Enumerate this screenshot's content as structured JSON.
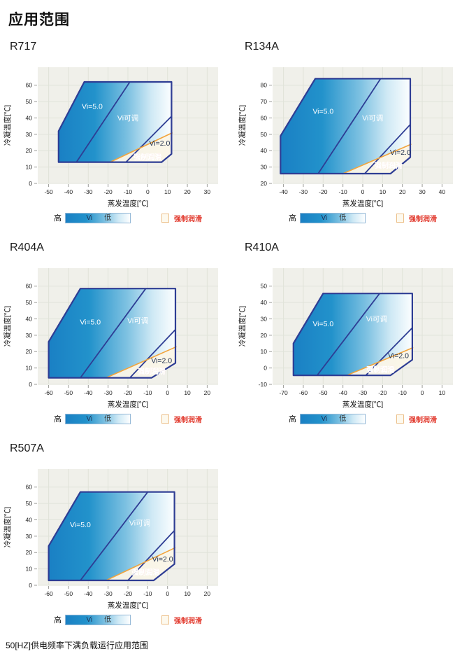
{
  "page": {
    "title": "应用范围",
    "footnote": "50[HZ]供电频率下满负载运行应用范围"
  },
  "legend": {
    "high": "高",
    "vi": "Vi",
    "low": "低",
    "forced": "强制润滑"
  },
  "colors": {
    "envelope_border": "#2e3d94",
    "gradient_stops": [
      "#1a80c4",
      "#2292cb",
      "#7fc2e2",
      "#cfe9f5",
      "#fcfeff"
    ],
    "gradient_offsets": [
      0,
      0.32,
      0.62,
      0.82,
      1
    ],
    "orange": "#f2a43c",
    "red": "#e23b2f",
    "plot_bg": "#f0f0ea",
    "grid_line": "#e0e3d9",
    "forced_fill": "#fbf5e7",
    "label_white": "#ffffff",
    "label_dark": "#1b2b4a",
    "tick_text": "#222222",
    "tick_mark": "#9a9a96",
    "axis_title": "#111111"
  },
  "chart_data": [
    {
      "id": "R717",
      "title": "R717",
      "type": "area",
      "xlabel": "蒸发温度[℃]",
      "ylabel": "冷凝温度[℃]",
      "xlim": [
        -55.5,
        35.5
      ],
      "ylim": [
        0,
        71
      ],
      "xticks": [
        -50,
        -40,
        -30,
        -20,
        -10,
        0,
        10,
        20,
        30
      ],
      "yticks": [
        0,
        10,
        20,
        30,
        40,
        50,
        60
      ],
      "envelope": [
        [
          -45,
          13
        ],
        [
          -45,
          32
        ],
        [
          -32,
          62
        ],
        [
          12,
          62
        ],
        [
          12,
          18
        ],
        [
          7,
          13
        ]
      ],
      "vi_max_line": [
        [
          -36,
          13
        ],
        [
          -9,
          62
        ]
      ],
      "vi_min_line": [
        [
          -11,
          13
        ],
        [
          12,
          41
        ]
      ],
      "forced_line": [
        [
          -19,
          13
        ],
        [
          12.5,
          31
        ]
      ],
      "forced_region": [
        [
          -19,
          13
        ],
        [
          7,
          13
        ],
        [
          12,
          18
        ],
        [
          12,
          31
        ]
      ],
      "labels": [
        {
          "text": "Vi=5.0",
          "x": -28,
          "y": 47,
          "color": "white"
        },
        {
          "text": "Vi可调",
          "x": -10,
          "y": 40,
          "color": "white"
        },
        {
          "text": "Vi=2.0",
          "x": 6,
          "y": 24.5,
          "color": "dark"
        },
        {
          "text": "强制润滑",
          "x": 0,
          "y": 16,
          "color": "red"
        }
      ]
    },
    {
      "id": "R134A",
      "title": "R134A",
      "type": "area",
      "xlabel": "蒸发温度[℃]",
      "ylabel": "冷凝温度[℃]",
      "xlim": [
        -45.5,
        45.5
      ],
      "ylim": [
        20,
        91
      ],
      "xticks": [
        -40,
        -30,
        -20,
        -10,
        0,
        10,
        20,
        30,
        40
      ],
      "yticks": [
        20,
        30,
        40,
        50,
        60,
        70,
        80
      ],
      "envelope": [
        [
          -41.5,
          26
        ],
        [
          -41.5,
          49
        ],
        [
          -24,
          84
        ],
        [
          24,
          84
        ],
        [
          24,
          36
        ],
        [
          14,
          26
        ]
      ],
      "vi_max_line": [
        [
          -22.5,
          26
        ],
        [
          9,
          84
        ]
      ],
      "vi_min_line": [
        [
          1,
          26
        ],
        [
          24,
          56
        ]
      ],
      "forced_line": [
        [
          -10,
          26
        ],
        [
          24.5,
          44
        ]
      ],
      "forced_region": [
        [
          -10,
          26
        ],
        [
          14,
          26
        ],
        [
          24,
          36
        ],
        [
          24,
          44
        ]
      ],
      "labels": [
        {
          "text": "Vi=5.0",
          "x": -20,
          "y": 64,
          "color": "white"
        },
        {
          "text": "Vi可调",
          "x": 5,
          "y": 60,
          "color": "white"
        },
        {
          "text": "Vi=2.0",
          "x": 19,
          "y": 39,
          "color": "dark"
        },
        {
          "text": "强制润滑",
          "x": 13,
          "y": 31,
          "color": "red"
        }
      ]
    },
    {
      "id": "R404A",
      "title": "R404A",
      "type": "area",
      "xlabel": "蒸发温度[℃]",
      "ylabel": "冷凝温度[℃]",
      "xlim": [
        -65.5,
        25.5
      ],
      "ylim": [
        0,
        71
      ],
      "xticks": [
        -60,
        -50,
        -40,
        -30,
        -20,
        -10,
        0,
        10,
        20
      ],
      "yticks": [
        0,
        10,
        20,
        30,
        40,
        50,
        60
      ],
      "envelope": [
        [
          -60,
          4
        ],
        [
          -60,
          26
        ],
        [
          -44,
          58.5
        ],
        [
          4,
          58.5
        ],
        [
          4,
          13
        ],
        [
          -8,
          4
        ]
      ],
      "vi_max_line": [
        [
          -44,
          4
        ],
        [
          -11,
          58.5
        ]
      ],
      "vi_min_line": [
        [
          -19,
          4
        ],
        [
          4,
          33.5
        ]
      ],
      "forced_line": [
        [
          -31,
          4
        ],
        [
          4.5,
          23
        ]
      ],
      "forced_region": [
        [
          -31,
          4
        ],
        [
          -8,
          4
        ],
        [
          4,
          13
        ],
        [
          4,
          23
        ]
      ],
      "labels": [
        {
          "text": "Vi=5.0",
          "x": -39,
          "y": 38,
          "color": "white"
        },
        {
          "text": "Vi可调",
          "x": -15,
          "y": 39,
          "color": "white"
        },
        {
          "text": "Vi=2.0",
          "x": -3,
          "y": 14.5,
          "color": "dark"
        },
        {
          "text": "强制润滑",
          "x": -8,
          "y": 8,
          "color": "red"
        }
      ]
    },
    {
      "id": "R410A",
      "title": "R410A",
      "type": "area",
      "xlabel": "蒸发温度[℃]",
      "ylabel": "冷凝温度[℃]",
      "xlim": [
        -75.5,
        15.5
      ],
      "ylim": [
        -10,
        61
      ],
      "xticks": [
        -70,
        -60,
        -50,
        -40,
        -30,
        -20,
        -10,
        0,
        10
      ],
      "yticks": [
        -10,
        0,
        10,
        20,
        30,
        40,
        50
      ],
      "envelope": [
        [
          -65,
          -4.5
        ],
        [
          -65,
          15
        ],
        [
          -50,
          45.5
        ],
        [
          -5,
          45.5
        ],
        [
          -5,
          5
        ],
        [
          -16,
          -4.5
        ]
      ],
      "vi_max_line": [
        [
          -53,
          -4.5
        ],
        [
          -21.5,
          45.5
        ]
      ],
      "vi_min_line": [
        [
          -28.5,
          -4.5
        ],
        [
          -5,
          24.5
        ]
      ],
      "forced_line": [
        [
          -38,
          -4.5
        ],
        [
          -4.5,
          12.5
        ]
      ],
      "forced_region": [
        [
          -38,
          -4.5
        ],
        [
          -16,
          -4.5
        ],
        [
          -5,
          5
        ],
        [
          -5,
          12.5
        ]
      ],
      "labels": [
        {
          "text": "Vi=5.0",
          "x": -50,
          "y": 27,
          "color": "white"
        },
        {
          "text": "Vi可调",
          "x": -23,
          "y": 30,
          "color": "white"
        },
        {
          "text": "Vi=2.0",
          "x": -12,
          "y": 7.5,
          "color": "dark"
        },
        {
          "text": "强制润滑",
          "x": -21,
          "y": -1,
          "color": "red"
        }
      ]
    },
    {
      "id": "R507A",
      "title": "R507A",
      "type": "area",
      "xlabel": "蒸发温度[℃]",
      "ylabel": "冷凝温度[℃]",
      "xlim": [
        -65.5,
        25.5
      ],
      "ylim": [
        0,
        71
      ],
      "xticks": [
        -60,
        -50,
        -40,
        -30,
        -20,
        -10,
        0,
        10,
        20
      ],
      "yticks": [
        0,
        10,
        20,
        30,
        40,
        50,
        60
      ],
      "envelope": [
        [
          -60,
          3
        ],
        [
          -60,
          24
        ],
        [
          -44,
          57
        ],
        [
          3.5,
          57
        ],
        [
          3.5,
          13
        ],
        [
          -7,
          3
        ]
      ],
      "vi_max_line": [
        [
          -44,
          3
        ],
        [
          -10,
          57
        ]
      ],
      "vi_min_line": [
        [
          -20,
          3
        ],
        [
          3.5,
          33.5
        ]
      ],
      "forced_line": [
        [
          -31,
          3
        ],
        [
          4,
          23
        ]
      ],
      "forced_region": [
        [
          -31,
          3
        ],
        [
          -7,
          3
        ],
        [
          3.5,
          13
        ],
        [
          3.5,
          23
        ]
      ],
      "labels": [
        {
          "text": "Vi=5.0",
          "x": -44,
          "y": 37,
          "color": "white"
        },
        {
          "text": "Vi可调",
          "x": -14,
          "y": 38,
          "color": "white"
        },
        {
          "text": "Vi=2.0",
          "x": -2.5,
          "y": 16,
          "color": "dark"
        },
        {
          "text": "强制润滑",
          "x": -11,
          "y": 8,
          "color": "red"
        }
      ]
    }
  ]
}
